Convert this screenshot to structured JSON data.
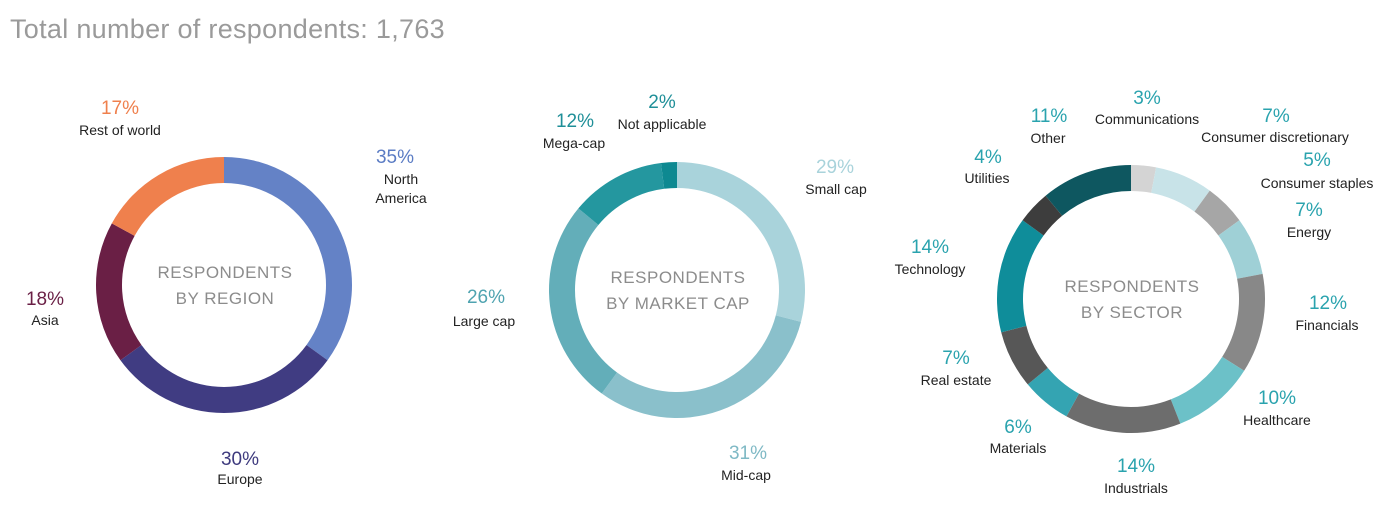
{
  "title": "Total number of respondents: 1,763",
  "chart_data": [
    {
      "type": "pie",
      "center_label": [
        "RESPONDENTS",
        "BY REGION"
      ],
      "slices": [
        {
          "name": "North America",
          "label_lines": [
            "North",
            "America"
          ],
          "value": 35,
          "display": "35%",
          "color": "#6482c6",
          "label_color": "#5b7cc4"
        },
        {
          "name": "Europe",
          "label_lines": [
            "Europe"
          ],
          "value": 30,
          "display": "30%",
          "color": "#403c82",
          "label_color": "#3e3a7e"
        },
        {
          "name": "Asia",
          "label_lines": [
            "Asia"
          ],
          "value": 18,
          "display": "18%",
          "color": "#6a1f45",
          "label_color": "#6a1f45"
        },
        {
          "name": "Rest of world",
          "label_lines": [
            "Rest of world"
          ],
          "value": 17,
          "display": "17%",
          "color": "#ef804d",
          "label_color": "#ef804d"
        }
      ]
    },
    {
      "type": "pie",
      "center_label": [
        "RESPONDENTS",
        "BY MARKET CAP"
      ],
      "slices": [
        {
          "name": "Small cap",
          "label_lines": [
            "Small cap"
          ],
          "value": 29,
          "display": "29%",
          "color": "#a9d3db",
          "label_color": "#a9d3db"
        },
        {
          "name": "Mid-cap",
          "label_lines": [
            "Mid-cap"
          ],
          "value": 31,
          "display": "31%",
          "color": "#8ac0cb",
          "label_color": "#7fb9c5"
        },
        {
          "name": "Large cap",
          "label_lines": [
            "Large cap"
          ],
          "value": 26,
          "display": "26%",
          "color": "#63aeb9",
          "label_color": "#4fa3b0"
        },
        {
          "name": "Mega-cap",
          "label_lines": [
            "Mega-cap"
          ],
          "value": 12,
          "display": "12%",
          "color": "#24979f",
          "label_color": "#1f8f98"
        },
        {
          "name": "Not applicable",
          "label_lines": [
            "Not applicable"
          ],
          "value": 2,
          "display": "2%",
          "color": "#0e8991",
          "label_color": "#1f8f98"
        }
      ]
    },
    {
      "type": "pie",
      "center_label": [
        "RESPONDENTS",
        "BY SECTOR"
      ],
      "slices": [
        {
          "name": "Communications",
          "label_lines": [
            "Communications"
          ],
          "value": 3,
          "display": "3%",
          "color": "#d4d4d4",
          "label_color": "#2aa3ae"
        },
        {
          "name": "Consumer discretionary",
          "label_lines": [
            "Consumer discretionary"
          ],
          "value": 7,
          "display": "7%",
          "color": "#c8e3e8",
          "label_color": "#2aa3ae"
        },
        {
          "name": "Consumer staples",
          "label_lines": [
            "Consumer staples"
          ],
          "value": 5,
          "display": "5%",
          "color": "#a6a6a6",
          "label_color": "#2aa3ae"
        },
        {
          "name": "Energy",
          "label_lines": [
            "Energy"
          ],
          "value": 7,
          "display": "7%",
          "color": "#9fd0d6",
          "label_color": "#2aa3ae"
        },
        {
          "name": "Financials",
          "label_lines": [
            "Financials"
          ],
          "value": 12,
          "display": "12%",
          "color": "#888888",
          "label_color": "#2aa3ae"
        },
        {
          "name": "Healthcare",
          "label_lines": [
            "Healthcare"
          ],
          "value": 10,
          "display": "10%",
          "color": "#6cc1c8",
          "label_color": "#2aa3ae"
        },
        {
          "name": "Industrials",
          "label_lines": [
            "Industrials"
          ],
          "value": 14,
          "display": "14%",
          "color": "#6d6d6d",
          "label_color": "#2aa3ae"
        },
        {
          "name": "Materials",
          "label_lines": [
            "Materials"
          ],
          "value": 6,
          "display": "6%",
          "color": "#34a4b2",
          "label_color": "#2aa3ae"
        },
        {
          "name": "Real estate",
          "label_lines": [
            "Real estate"
          ],
          "value": 7,
          "display": "7%",
          "color": "#575757",
          "label_color": "#2aa3ae"
        },
        {
          "name": "Technology",
          "label_lines": [
            "Technology"
          ],
          "value": 14,
          "display": "14%",
          "color": "#0f8d9a",
          "label_color": "#2aa3ae"
        },
        {
          "name": "Utilities",
          "label_lines": [
            "Utilities"
          ],
          "value": 4,
          "display": "4%",
          "color": "#3d3d3d",
          "label_color": "#2aa3ae"
        },
        {
          "name": "Other",
          "label_lines": [
            "Other"
          ],
          "value": 11,
          "display": "11%",
          "color": "#0e5760",
          "label_color": "#2aa3ae"
        }
      ]
    }
  ]
}
